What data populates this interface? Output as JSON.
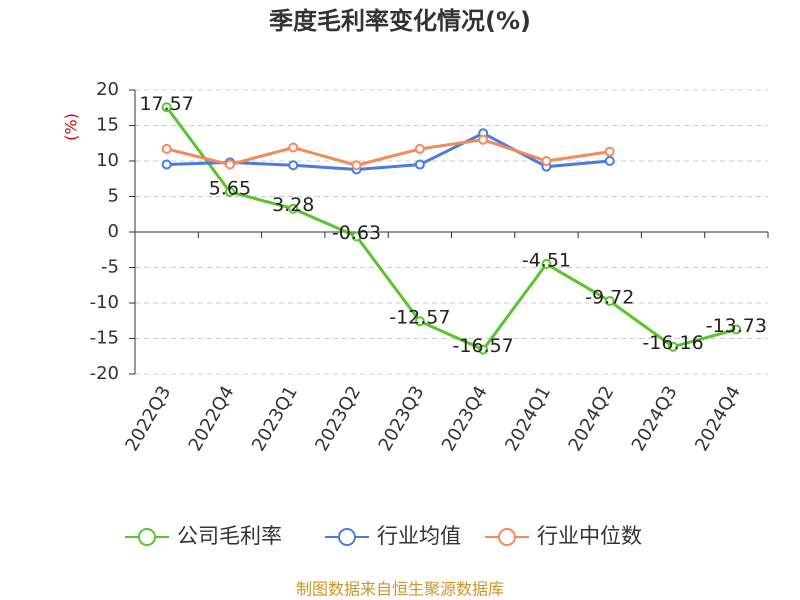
{
  "chart_data": {
    "type": "line",
    "title": "季度毛利率变化情况(%)",
    "y_label": "(%)",
    "categories": [
      "2022Q3",
      "2022Q4",
      "2023Q1",
      "2023Q2",
      "2023Q3",
      "2023Q4",
      "2024Q1",
      "2024Q2",
      "2024Q3",
      "2024Q4"
    ],
    "series": [
      {
        "name": "公司毛利率",
        "color": "#5cc42b",
        "values": [
          17.57,
          5.65,
          3.28,
          -0.63,
          -12.57,
          -16.57,
          -4.51,
          -9.72,
          -16.16,
          -13.73
        ],
        "show_labels": true
      },
      {
        "name": "行业均值",
        "color": "#4b7be0",
        "values": [
          9.5,
          9.8,
          9.4,
          8.8,
          9.5,
          13.9,
          9.2,
          10.0,
          null,
          null
        ]
      },
      {
        "name": "行业中位数",
        "color": "#f5895a",
        "values": [
          11.7,
          9.5,
          11.9,
          9.4,
          11.7,
          13.0,
          10.0,
          11.3,
          null,
          null
        ]
      }
    ],
    "ylim": [
      -20,
      20
    ],
    "yticks": [
      -20,
      -15,
      -10,
      -5,
      0,
      5,
      10,
      15,
      20
    ],
    "grid": true,
    "source": "制图数据来自恒生聚源数据库"
  }
}
